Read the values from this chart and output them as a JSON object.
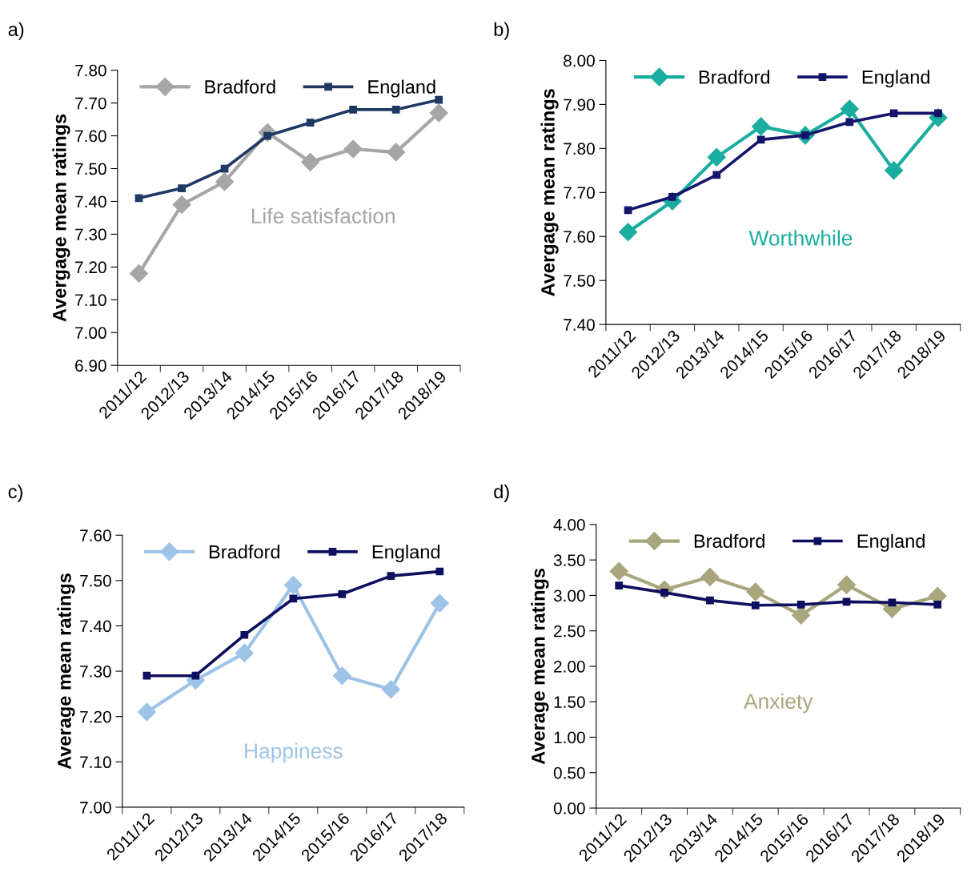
{
  "chart_data": [
    {
      "type": "line",
      "title": "a)",
      "ylabel": "Avergage mean ratings",
      "categories": [
        "2011/12",
        "2012/13",
        "2013/14",
        "2014/15",
        "2015/16",
        "2016/17",
        "2017/18",
        "2018/19"
      ],
      "series": [
        {
          "name": "Bradford",
          "color": "#a6a6a6",
          "marker": "diamond",
          "values": [
            7.18,
            7.39,
            7.46,
            7.61,
            7.52,
            7.56,
            7.55,
            7.67
          ]
        },
        {
          "name": "England",
          "color": "#1f3864",
          "marker": "square",
          "values": [
            7.41,
            7.44,
            7.5,
            7.6,
            7.64,
            7.68,
            7.68,
            7.71
          ]
        }
      ],
      "ylim": [
        6.9,
        7.8
      ],
      "yticks": [
        {
          "value": 6.9,
          "label": "6.90"
        },
        {
          "value": 7.0,
          "label": "7.00"
        },
        {
          "value": 7.1,
          "label": "7.10"
        },
        {
          "value": 7.2,
          "label": "7.20"
        },
        {
          "value": 7.3,
          "label": "7.30"
        },
        {
          "value": 7.4,
          "label": "7.40"
        },
        {
          "value": 7.5,
          "label": "7.50"
        },
        {
          "value": 7.6,
          "label": "7.60"
        },
        {
          "value": 7.7,
          "label": "7.70"
        },
        {
          "value": 7.8,
          "label": "7.80"
        }
      ],
      "annotations": [
        "Life satisfaction"
      ],
      "legend": "top",
      "grid": false
    },
    {
      "type": "line",
      "title": "b)",
      "ylabel": "Avergage mean ratings",
      "categories": [
        "2011/12",
        "2012/13",
        "2013/14",
        "2014/15",
        "2015/16",
        "2016/17",
        "2017/18",
        "2018/19"
      ],
      "series": [
        {
          "name": "Bradford",
          "color": "#1aada0",
          "marker": "diamond",
          "values": [
            7.61,
            7.68,
            7.78,
            7.85,
            7.83,
            7.89,
            7.75,
            7.87
          ]
        },
        {
          "name": "England",
          "color": "#14146b",
          "marker": "square",
          "values": [
            7.66,
            7.69,
            7.74,
            7.82,
            7.83,
            7.86,
            7.88,
            7.88
          ]
        }
      ],
      "ylim": [
        7.4,
        8.0
      ],
      "yticks": [
        {
          "value": 7.4,
          "label": "7.40"
        },
        {
          "value": 7.5,
          "label": "7.50"
        },
        {
          "value": 7.6,
          "label": "7.60"
        },
        {
          "value": 7.7,
          "label": "7.70"
        },
        {
          "value": 7.8,
          "label": "7.80"
        },
        {
          "value": 7.9,
          "label": "7.90"
        },
        {
          "value": 8.0,
          "label": "8.00"
        }
      ],
      "annotations": [
        "Worthwhile"
      ],
      "legend": "top",
      "grid": false
    },
    {
      "type": "line",
      "title": "c)",
      "ylabel": "Average mean ratings",
      "categories": [
        "2011/12",
        "2012/13",
        "2013/14",
        "2014/15",
        "2015/16",
        "2016/17",
        "2017/18"
      ],
      "series": [
        {
          "name": "Bradford",
          "color": "#9dc3e6",
          "marker": "diamond",
          "values": [
            7.21,
            7.28,
            7.34,
            7.49,
            7.29,
            7.26,
            7.45
          ]
        },
        {
          "name": "England",
          "color": "#0f0f5f",
          "marker": "square",
          "values": [
            7.29,
            7.29,
            7.38,
            7.46,
            7.47,
            7.51,
            7.52
          ]
        }
      ],
      "ylim": [
        7.0,
        7.6
      ],
      "yticks": [
        {
          "value": 7.0,
          "label": "7.00"
        },
        {
          "value": 7.1,
          "label": "7.10"
        },
        {
          "value": 7.2,
          "label": "7.20"
        },
        {
          "value": 7.3,
          "label": "7.30"
        },
        {
          "value": 7.4,
          "label": "7.40"
        },
        {
          "value": 7.5,
          "label": "7.50"
        },
        {
          "value": 7.6,
          "label": "7.60"
        }
      ],
      "annotations": [
        "Happiness"
      ],
      "legend": "top",
      "grid": false
    },
    {
      "type": "line",
      "title": "d)",
      "ylabel": "Average mean ratings",
      "categories": [
        "2011/12",
        "2012/13",
        "2013/14",
        "2014/15",
        "2015/16",
        "2016/17",
        "2017/18",
        "2018/19"
      ],
      "series": [
        {
          "name": "Bradford",
          "color": "#a9a57c",
          "marker": "diamond",
          "values": [
            3.34,
            3.08,
            3.26,
            3.05,
            2.72,
            3.15,
            2.81,
            2.99
          ]
        },
        {
          "name": "England",
          "color": "#0f0f5f",
          "marker": "square",
          "values": [
            3.14,
            3.04,
            2.93,
            2.86,
            2.87,
            2.91,
            2.9,
            2.87
          ]
        }
      ],
      "ylim": [
        0.0,
        4.0
      ],
      "yticks": [
        {
          "value": 0.0,
          "label": "0.00"
        },
        {
          "value": 0.5,
          "label": "0.50"
        },
        {
          "value": 1.0,
          "label": "1.00"
        },
        {
          "value": 1.5,
          "label": "1.50"
        },
        {
          "value": 2.0,
          "label": "2.00"
        },
        {
          "value": 2.5,
          "label": "2.50"
        },
        {
          "value": 3.0,
          "label": "3.00"
        },
        {
          "value": 3.5,
          "label": "3.50"
        },
        {
          "value": 4.0,
          "label": "4.00"
        }
      ],
      "annotations": [
        "Anxiety"
      ],
      "legend": "top",
      "grid": false
    }
  ]
}
